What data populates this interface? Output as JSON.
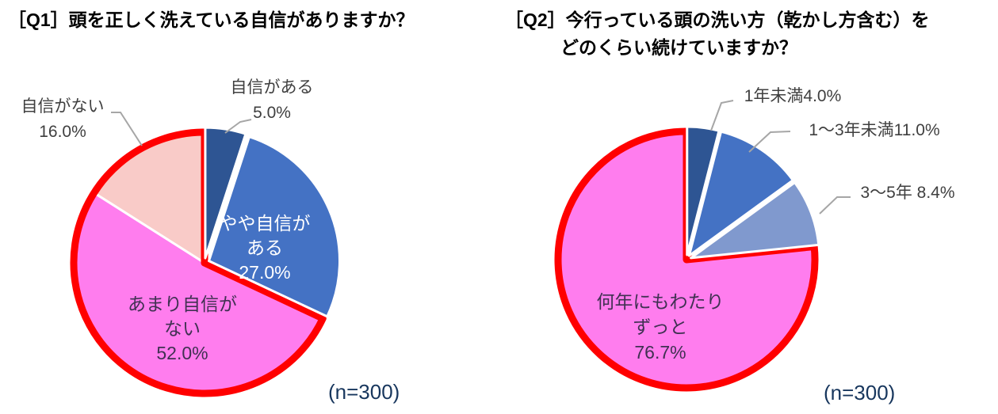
{
  "page": {
    "background": "#FFFFFF"
  },
  "styles": {
    "leader_line_color": "#A6A6A6",
    "slice_divider_color": "#FFFFFF",
    "highlight_color": "#FF0000",
    "outside_label_color": "#3F3F3F",
    "dark_inside_label_color": "#403152",
    "white_inside_label_color": "#FFFFFF",
    "n_label_color": "#17365D",
    "title_color": "#000000"
  },
  "chart_data": [
    {
      "type": "pie",
      "id": "q1",
      "title": "［Q1］頭を正しく洗えている自信がありますか？",
      "title_lines": [
        "［Q1］頭を正しく洗えている自信がありますか？"
      ],
      "n_label": "(n=300)",
      "start_angle": "top",
      "direction": "clockwise",
      "categories": [
        "自信がある",
        "やや自信がある",
        "あまり自信がない",
        "自信がない"
      ],
      "values": [
        5.0,
        27.0,
        52.0,
        16.0
      ],
      "slices": [
        {
          "label": "自信がある",
          "value": 5.0,
          "pct_text": "5.0%",
          "color": "#2E5593",
          "label_placement": "outside",
          "display_lines": [
            "自信がある",
            "5.0%"
          ],
          "label_color": "#3F3F3F"
        },
        {
          "label": "やや自信がある",
          "value": 27.0,
          "pct_text": "27.0%",
          "color": "#4472C4",
          "label_placement": "inside",
          "display_lines": [
            "やや自信が",
            "ある",
            "27.0%"
          ],
          "label_color": "#FFFFFF"
        },
        {
          "label": "あまり自信がない",
          "value": 52.0,
          "pct_text": "52.0%",
          "color": "#FF7DEE",
          "label_placement": "inside",
          "display_lines": [
            "あまり自信が",
            "ない",
            "52.0%"
          ],
          "label_color": "#403152"
        },
        {
          "label": "自信がない",
          "value": 16.0,
          "pct_text": "16.0%",
          "color": "#F9CBC8",
          "label_placement": "outside",
          "display_lines": [
            "自信がない",
            "16.0%"
          ],
          "label_color": "#3F3F3F"
        }
      ],
      "highlight_outline": {
        "color": "#FF0000",
        "slice_indices": [
          2,
          3
        ]
      }
    },
    {
      "type": "pie",
      "id": "q2",
      "title": "［Q2］今行っている頭の洗い方（乾かし方含む）をどのくらい続けていますか？",
      "title_lines": [
        "［Q2］今行っている頭の洗い方（乾かし方含む）を",
        "どのくらい続けていますか？"
      ],
      "n_label": "(n=300)",
      "start_angle": "top",
      "direction": "clockwise",
      "categories": [
        "1年未満",
        "1～3年未満",
        "3～5年",
        "何年にもわたりずっと"
      ],
      "values": [
        4.0,
        11.0,
        8.4,
        76.7
      ],
      "slices": [
        {
          "label": "1年未満",
          "value": 4.0,
          "pct_text": "4.0%",
          "color": "#2E5593",
          "label_placement": "outside",
          "display_lines": [
            "1年未満4.0%"
          ],
          "label_color": "#3F3F3F"
        },
        {
          "label": "1～3年未満",
          "value": 11.0,
          "pct_text": "11.0%",
          "color": "#4472C4",
          "label_placement": "outside",
          "display_lines": [
            "1～3年未満11.0%"
          ],
          "label_color": "#3F3F3F"
        },
        {
          "label": "3～5年",
          "value": 8.4,
          "pct_text": "8.4%",
          "color": "#8099CE",
          "label_placement": "outside",
          "display_lines": [
            "3～5年 8.4%"
          ],
          "label_color": "#3F3F3F"
        },
        {
          "label": "何年にもわたりずっと",
          "value": 76.7,
          "pct_text": "76.7%",
          "color": "#FF7DEE",
          "label_placement": "inside",
          "display_lines": [
            "何年にもわたり",
            "ずっと",
            "76.7%"
          ],
          "label_color": "#403152"
        }
      ],
      "highlight_outline": {
        "color": "#FF0000",
        "slice_indices": [
          3
        ]
      }
    }
  ]
}
